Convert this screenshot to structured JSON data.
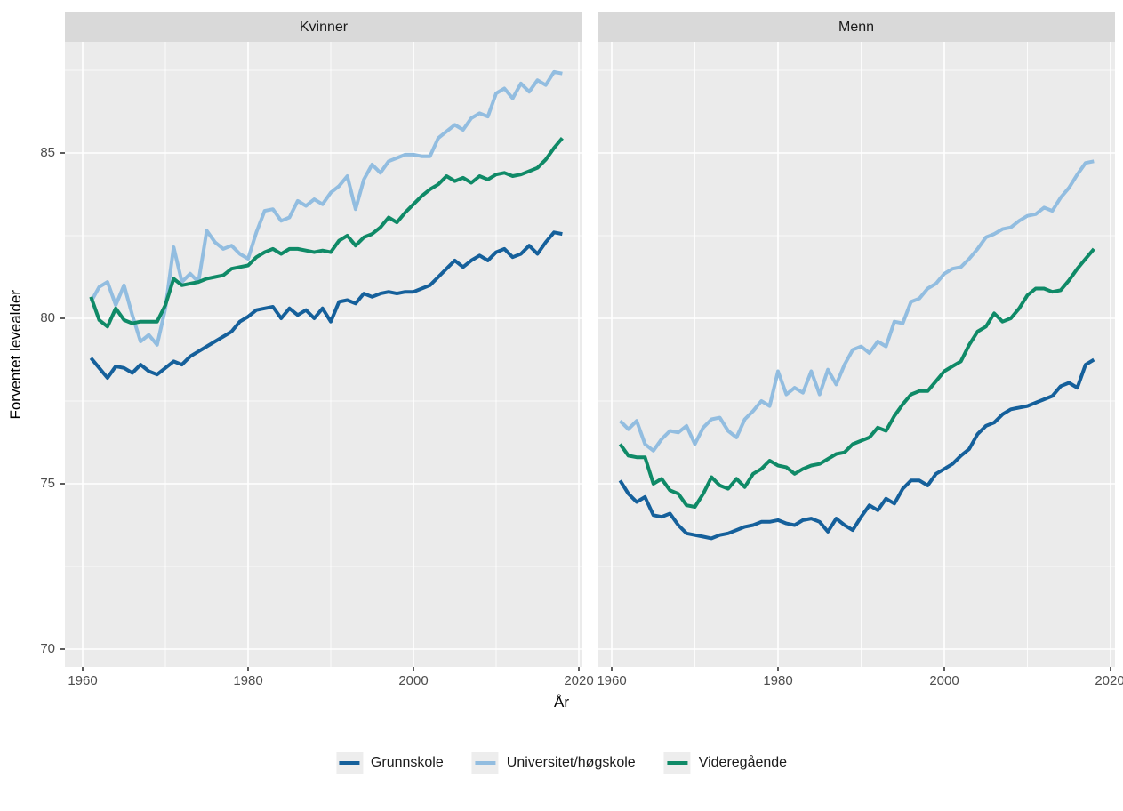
{
  "chart_data": {
    "type": "line",
    "title": "",
    "xlabel": "År",
    "ylabel": "Forventet levealder",
    "x_ticks": [
      1960,
      1980,
      2000,
      2020
    ],
    "y_ticks": [
      70,
      75,
      80,
      85
    ],
    "x_minor_gridlines": [
      1970,
      1990,
      2010
    ],
    "y_minor_gridlines": [
      72.5,
      77.5,
      82.5,
      87.5
    ],
    "xlim": [
      1957.8,
      2020.4
    ],
    "ylim": [
      69.6,
      88.4
    ],
    "grid": "white major and minor gridlines on gray panel (ggplot style)",
    "legend_position": "bottom",
    "years": [
      1961,
      1962,
      1963,
      1964,
      1965,
      1966,
      1967,
      1968,
      1969,
      1970,
      1971,
      1972,
      1973,
      1974,
      1975,
      1976,
      1977,
      1978,
      1979,
      1980,
      1981,
      1982,
      1983,
      1984,
      1985,
      1986,
      1987,
      1988,
      1989,
      1990,
      1991,
      1992,
      1993,
      1994,
      1995,
      1996,
      1997,
      1998,
      1999,
      2000,
      2001,
      2002,
      2003,
      2004,
      2005,
      2006,
      2007,
      2008,
      2009,
      2010,
      2011,
      2012,
      2013,
      2014,
      2015,
      2016,
      2017,
      2018
    ],
    "facets": [
      {
        "label": "Kvinner",
        "series": [
          {
            "name": "Grunnskole",
            "color": "#15609b",
            "values": [
              78.8,
              78.5,
              78.2,
              78.55,
              78.5,
              78.35,
              78.6,
              78.4,
              78.3,
              78.5,
              78.7,
              78.6,
              78.85,
              79.0,
              79.15,
              79.3,
              79.45,
              79.6,
              79.9,
              80.05,
              80.25,
              80.3,
              80.35,
              80.0,
              80.3,
              80.1,
              80.25,
              80.0,
              80.3,
              79.9,
              80.5,
              80.55,
              80.45,
              80.75,
              80.65,
              80.75,
              80.8,
              80.75,
              80.8,
              80.8,
              80.9,
              81.0,
              81.25,
              81.5,
              81.75,
              81.55,
              81.75,
              81.9,
              81.75,
              82.0,
              82.1,
              81.85,
              81.95,
              82.2,
              81.95,
              82.3,
              82.6,
              82.55
            ]
          },
          {
            "name": "Universitet/høgskole",
            "color": "#92bde0",
            "values": [
              80.5,
              80.95,
              81.1,
              80.4,
              81.0,
              80.1,
              79.3,
              79.5,
              79.2,
              80.3,
              82.15,
              81.1,
              81.35,
              81.1,
              82.65,
              82.3,
              82.1,
              82.2,
              81.95,
              81.8,
              82.6,
              83.25,
              83.3,
              82.95,
              83.05,
              83.55,
              83.4,
              83.6,
              83.45,
              83.8,
              84.0,
              84.3,
              83.3,
              84.2,
              84.65,
              84.4,
              84.75,
              84.85,
              84.95,
              84.95,
              84.9,
              84.9,
              85.45,
              85.65,
              85.85,
              85.7,
              86.05,
              86.2,
              86.1,
              86.8,
              86.95,
              86.65,
              87.1,
              86.85,
              87.2,
              87.05,
              87.45,
              87.4
            ]
          },
          {
            "name": "Videregående",
            "color": "#0f8a67",
            "values": [
              80.65,
              79.95,
              79.75,
              80.3,
              79.95,
              79.85,
              79.9,
              79.9,
              79.9,
              80.4,
              81.2,
              81.0,
              81.05,
              81.1,
              81.2,
              81.25,
              81.3,
              81.5,
              81.55,
              81.6,
              81.85,
              82.0,
              82.1,
              81.95,
              82.1,
              82.1,
              82.05,
              82.0,
              82.05,
              82.0,
              82.35,
              82.5,
              82.2,
              82.45,
              82.55,
              82.75,
              83.05,
              82.9,
              83.2,
              83.45,
              83.7,
              83.9,
              84.05,
              84.3,
              84.15,
              84.25,
              84.1,
              84.3,
              84.2,
              84.35,
              84.4,
              84.3,
              84.35,
              84.45,
              84.55,
              84.8,
              85.15,
              85.45
            ]
          }
        ]
      },
      {
        "label": "Menn",
        "series": [
          {
            "name": "Grunnskole",
            "color": "#15609b",
            "values": [
              75.1,
              74.7,
              74.45,
              74.6,
              74.05,
              74.0,
              74.1,
              73.75,
              73.5,
              73.45,
              73.4,
              73.35,
              73.45,
              73.5,
              73.6,
              73.7,
              73.75,
              73.85,
              73.85,
              73.9,
              73.8,
              73.75,
              73.9,
              73.95,
              73.85,
              73.55,
              73.95,
              73.75,
              73.6,
              74.0,
              74.35,
              74.2,
              74.55,
              74.4,
              74.85,
              75.1,
              75.1,
              74.95,
              75.3,
              75.45,
              75.6,
              75.85,
              76.05,
              76.5,
              76.75,
              76.85,
              77.1,
              77.25,
              77.3,
              77.35,
              77.45,
              77.55,
              77.65,
              77.95,
              78.05,
              77.9,
              78.6,
              78.75
            ]
          },
          {
            "name": "Universitet/høgskole",
            "color": "#92bde0",
            "values": [
              76.9,
              76.65,
              76.9,
              76.2,
              76.0,
              76.35,
              76.6,
              76.55,
              76.75,
              76.2,
              76.7,
              76.95,
              77.0,
              76.6,
              76.4,
              76.95,
              77.2,
              77.5,
              77.35,
              78.4,
              77.7,
              77.9,
              77.75,
              78.4,
              77.7,
              78.45,
              78.0,
              78.6,
              79.05,
              79.15,
              78.95,
              79.3,
              79.15,
              79.9,
              79.85,
              80.5,
              80.6,
              80.9,
              81.05,
              81.35,
              81.5,
              81.55,
              81.8,
              82.1,
              82.45,
              82.55,
              82.7,
              82.75,
              82.95,
              83.1,
              83.15,
              83.35,
              83.25,
              83.65,
              83.95,
              84.35,
              84.7,
              84.75
            ]
          },
          {
            "name": "Videregående",
            "color": "#0f8a67",
            "values": [
              76.2,
              75.85,
              75.8,
              75.8,
              75.0,
              75.15,
              74.8,
              74.7,
              74.35,
              74.3,
              74.7,
              75.2,
              74.95,
              74.85,
              75.15,
              74.9,
              75.3,
              75.45,
              75.7,
              75.55,
              75.5,
              75.3,
              75.45,
              75.55,
              75.6,
              75.75,
              75.9,
              75.95,
              76.2,
              76.3,
              76.4,
              76.7,
              76.6,
              77.05,
              77.4,
              77.7,
              77.8,
              77.8,
              78.1,
              78.4,
              78.55,
              78.7,
              79.2,
              79.6,
              79.75,
              80.15,
              79.9,
              80.0,
              80.3,
              80.7,
              80.9,
              80.9,
              80.8,
              80.85,
              81.15,
              81.5,
              81.8,
              82.1
            ]
          }
        ]
      }
    ]
  },
  "style": {
    "panel_bg": "#ebebeb",
    "strip_bg": "#d9d9d9",
    "grid_color": "#ffffff",
    "tick_color": "#333333",
    "tick_label_color": "#4d4d4d",
    "legend_key_bg": "#ededed"
  }
}
